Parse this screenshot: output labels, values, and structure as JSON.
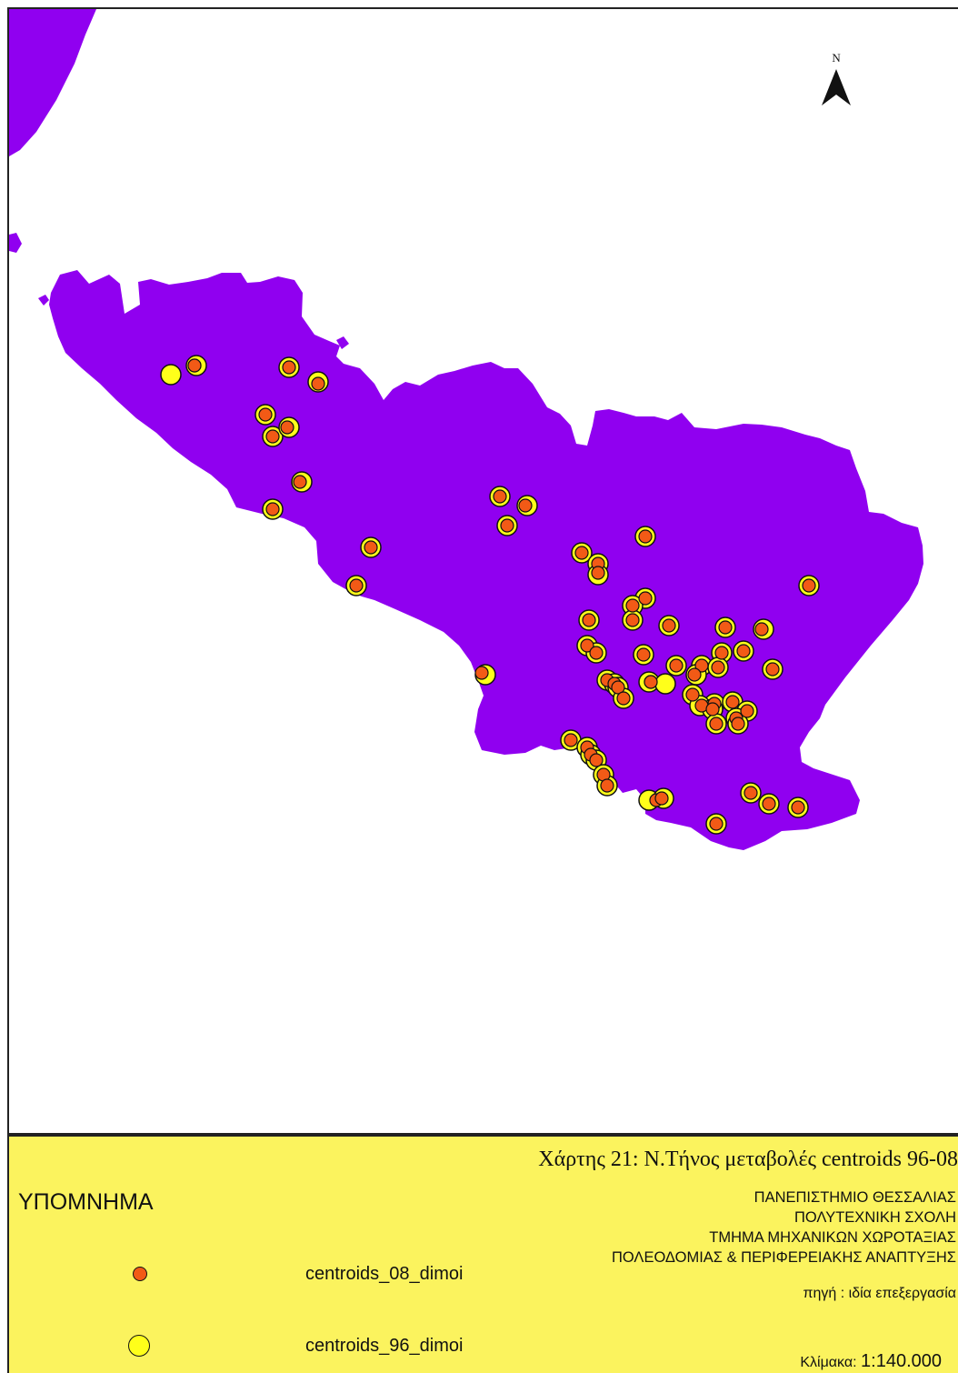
{
  "north_arrow": {
    "label": "N"
  },
  "colors": {
    "land": "#9000f0",
    "centroids_08": "#f25a16",
    "centroids_96": "#ffff1a",
    "legend_background": "#fbf35e"
  },
  "legend": {
    "heading": "ΥΠΟΜΝΗΜΑ",
    "items": [
      {
        "label": "centroids_08_dimoi",
        "symbol": "orange-dot-icon"
      },
      {
        "label": "centroids_96_dimoi",
        "symbol": "yellow-dot-icon"
      }
    ]
  },
  "title": "Χάρτης 21: Ν.Τήνος μεταβολές centroids 96-08",
  "institution": [
    "ΠΑΝΕΠΙΣΤΗΜΙΟ ΘΕΣΣΑΛΙΑΣ",
    "ΠΟΛΥΤΕΧΝΙΚΗ ΣΧΟΛΗ",
    "ΤΜΗΜΑ ΜΗΧΑΝΙΚΩΝ ΧΩΡΟΤΑΞΙΑΣ",
    "ΠΟΛΕΟΔΟΜΙΑΣ & ΠΕΡΙΦΕΡΕΙΑΚΗΣ ΑΝΑΠΤΥΞΗΣ"
  ],
  "source": "πηγή : ιδία επεξεργασία",
  "scale": {
    "label": "Κλίμακα:",
    "value": "1:140.000"
  }
}
